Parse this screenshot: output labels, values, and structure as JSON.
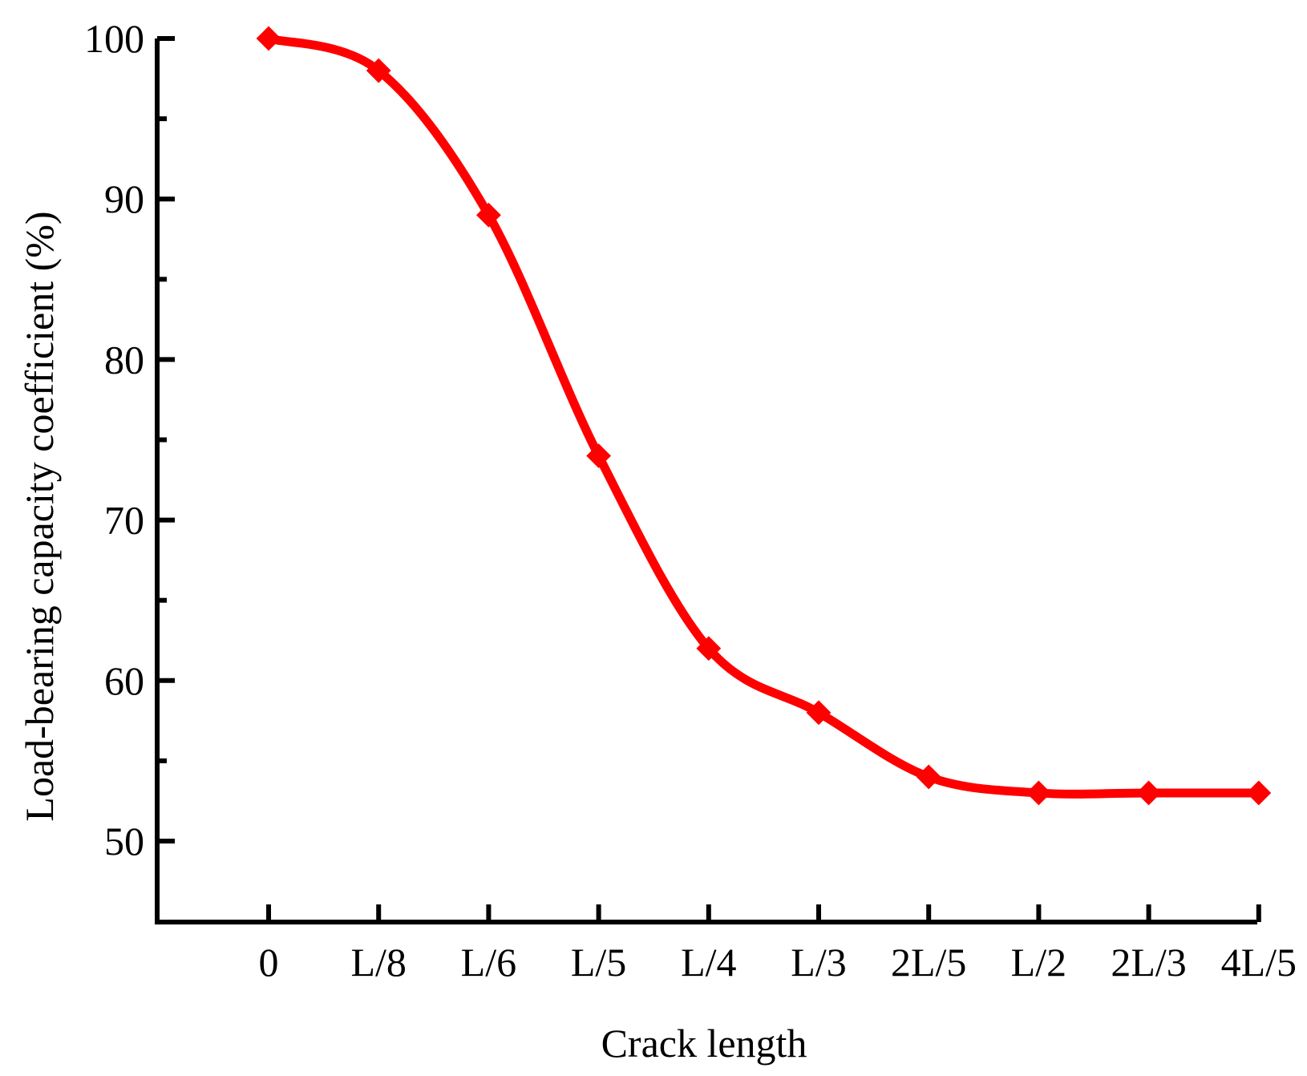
{
  "chart_data": {
    "type": "line",
    "title": "",
    "xlabel": "Crack length",
    "ylabel": "Load-bearing capacity coefficient (%)",
    "categories": [
      "0",
      "L/8",
      "L/6",
      "L/5",
      "L/4",
      "L/3",
      "2L/5",
      "L/2",
      "2L/3",
      "4L/5"
    ],
    "series": [
      {
        "values": [
          100,
          98,
          89,
          74,
          62,
          58,
          54,
          53,
          53,
          53
        ],
        "color": "#ff0000",
        "marker": "diamond",
        "smooth": true
      }
    ],
    "ylim": [
      45,
      100
    ],
    "yticks": [
      50,
      60,
      70,
      80,
      90,
      100
    ],
    "yminor_step": 5,
    "grid": false,
    "legend": "none"
  }
}
